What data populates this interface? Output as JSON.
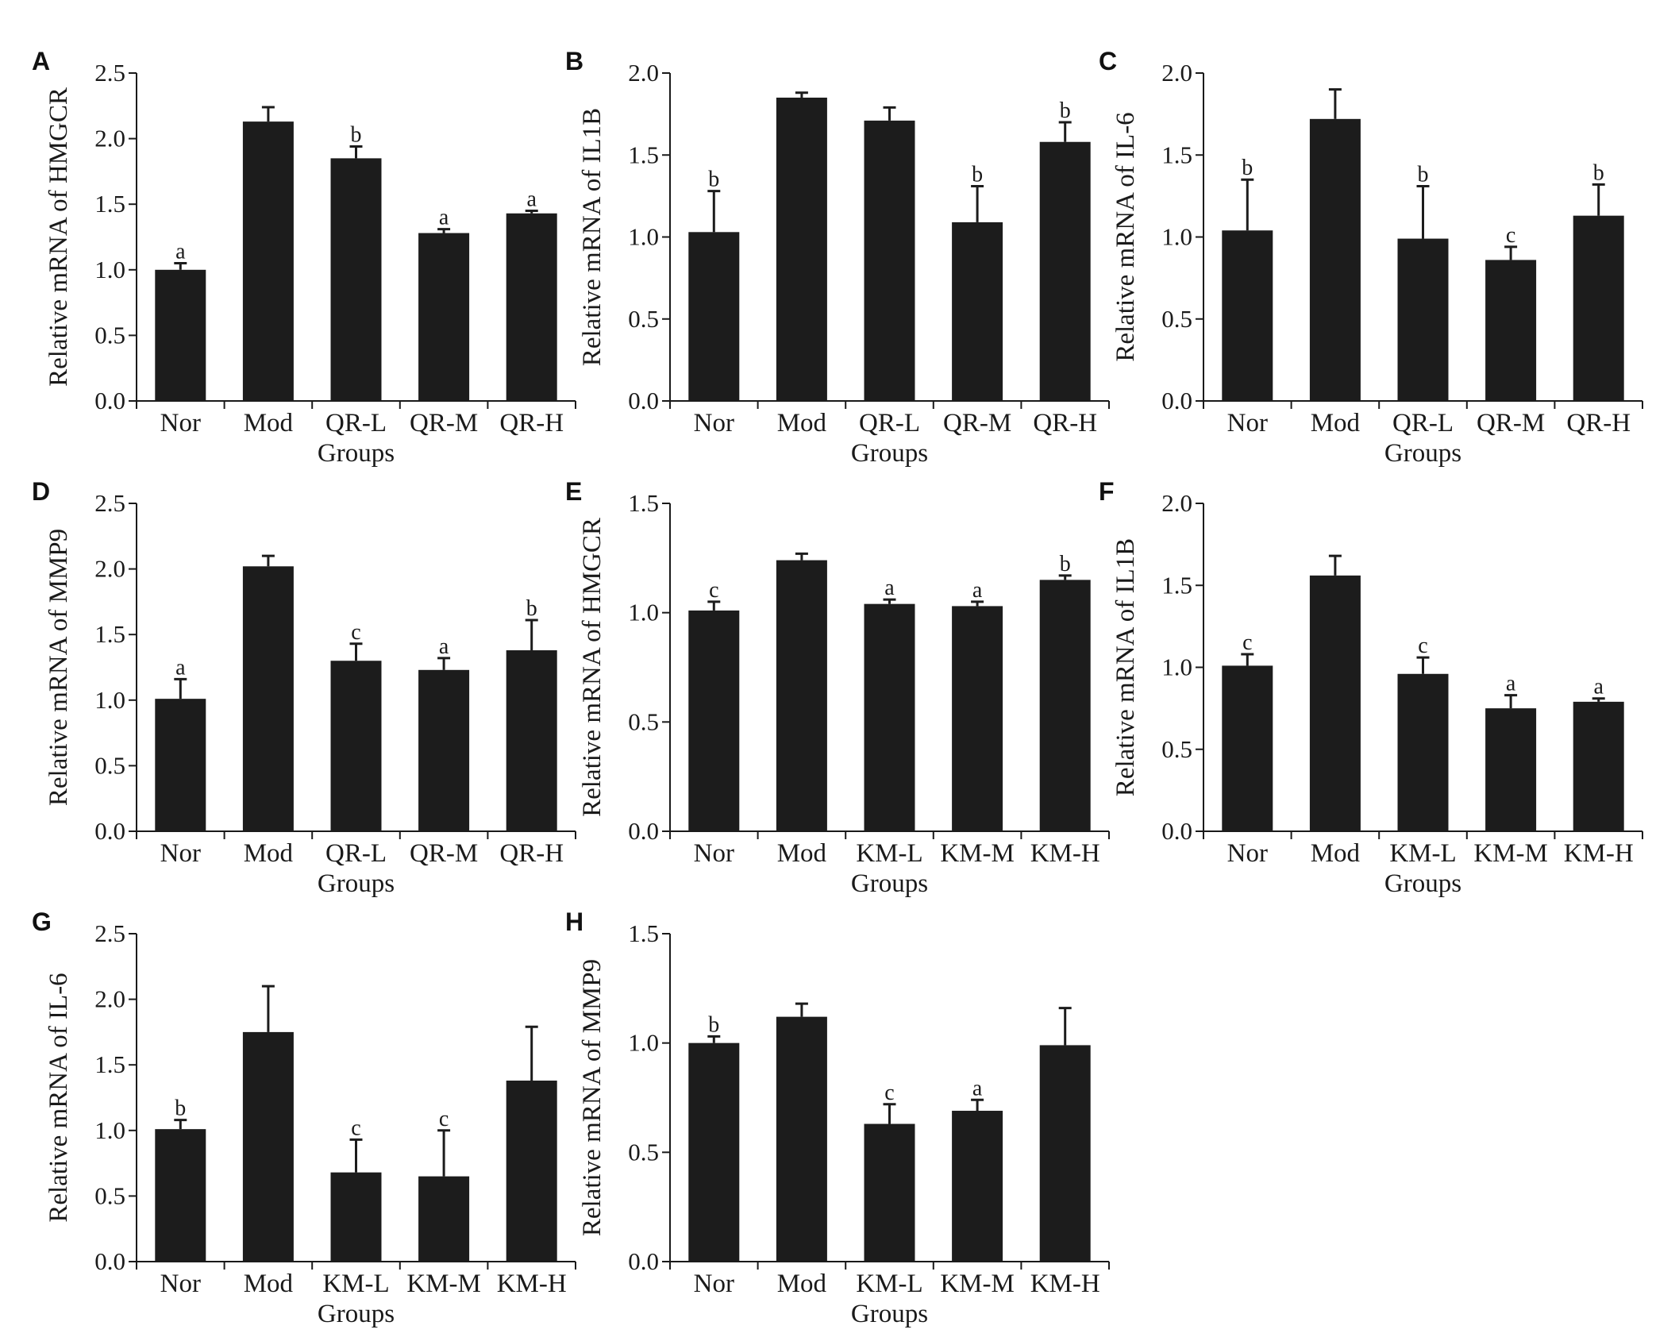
{
  "figure": {
    "background": "#ffffff",
    "bar_color": "#1c1c1c"
  },
  "chart_data": [
    {
      "panel": "A",
      "type": "bar",
      "title": "",
      "xlabel": "Groups",
      "ylabel": "Relative mRNA of HMGCR",
      "categories": [
        "Nor",
        "Mod",
        "QR-L",
        "QR-M",
        "QR-H"
      ],
      "values": [
        1.0,
        2.13,
        1.85,
        1.28,
        1.43
      ],
      "errors": [
        0.05,
        0.11,
        0.09,
        0.03,
        0.02
      ],
      "significance": [
        "a",
        "",
        "b",
        "a",
        "a"
      ],
      "ylim": [
        0,
        2.5
      ],
      "yticks": [
        "0.0",
        "0.5",
        "1.0",
        "1.5",
        "2.0",
        "2.5"
      ],
      "grid": false
    },
    {
      "panel": "B",
      "type": "bar",
      "title": "",
      "xlabel": "Groups",
      "ylabel": "Relative mRNA of IL1B",
      "categories": [
        "Nor",
        "Mod",
        "QR-L",
        "QR-M",
        "QR-H"
      ],
      "values": [
        1.03,
        1.85,
        1.71,
        1.09,
        1.58
      ],
      "errors": [
        0.25,
        0.03,
        0.08,
        0.22,
        0.12
      ],
      "significance": [
        "b",
        "",
        "",
        "b",
        "b"
      ],
      "ylim": [
        0,
        2.0
      ],
      "yticks": [
        "0.0",
        "0.5",
        "1.0",
        "1.5",
        "2.0"
      ],
      "grid": false
    },
    {
      "panel": "C",
      "type": "bar",
      "title": "",
      "xlabel": "Groups",
      "ylabel": "Relative mRNA of IL-6",
      "categories": [
        "Nor",
        "Mod",
        "QR-L",
        "QR-M",
        "QR-H"
      ],
      "values": [
        1.04,
        1.72,
        0.99,
        0.86,
        1.13
      ],
      "errors": [
        0.31,
        0.18,
        0.32,
        0.08,
        0.19
      ],
      "significance": [
        "b",
        "",
        "b",
        "c",
        "b"
      ],
      "ylim": [
        0,
        2.0
      ],
      "yticks": [
        "0.0",
        "0.5",
        "1.0",
        "1.5",
        "2.0"
      ],
      "grid": false
    },
    {
      "panel": "D",
      "type": "bar",
      "title": "",
      "xlabel": "Groups",
      "ylabel": "Relative mRNA of MMP9",
      "categories": [
        "Nor",
        "Mod",
        "QR-L",
        "QR-M",
        "QR-H"
      ],
      "values": [
        1.01,
        2.02,
        1.3,
        1.23,
        1.38
      ],
      "errors": [
        0.15,
        0.08,
        0.13,
        0.09,
        0.23
      ],
      "significance": [
        "a",
        "",
        "c",
        "a",
        "b"
      ],
      "ylim": [
        0,
        2.5
      ],
      "yticks": [
        "0.0",
        "0.5",
        "1.0",
        "1.5",
        "2.0",
        "2.5"
      ],
      "grid": false
    },
    {
      "panel": "E",
      "type": "bar",
      "title": "",
      "xlabel": "Groups",
      "ylabel": "Relative mRNA of HMGCR",
      "categories": [
        "Nor",
        "Mod",
        "KM-L",
        "KM-M",
        "KM-H"
      ],
      "values": [
        1.01,
        1.24,
        1.04,
        1.03,
        1.15
      ],
      "errors": [
        0.04,
        0.03,
        0.02,
        0.02,
        0.02
      ],
      "significance": [
        "c",
        "",
        "a",
        "a",
        "b"
      ],
      "ylim": [
        0,
        1.5
      ],
      "yticks": [
        "0.0",
        "0.5",
        "1.0",
        "1.5"
      ],
      "grid": false
    },
    {
      "panel": "F",
      "type": "bar",
      "title": "",
      "xlabel": "Groups",
      "ylabel": "Relative mRNA of IL1B",
      "categories": [
        "Nor",
        "Mod",
        "KM-L",
        "KM-M",
        "KM-H"
      ],
      "values": [
        1.01,
        1.56,
        0.96,
        0.75,
        0.79
      ],
      "errors": [
        0.07,
        0.12,
        0.1,
        0.08,
        0.02
      ],
      "significance": [
        "c",
        "",
        "c",
        "a",
        "a"
      ],
      "ylim": [
        0,
        2.0
      ],
      "yticks": [
        "0.0",
        "0.5",
        "1.0",
        "1.5",
        "2.0"
      ],
      "grid": false
    },
    {
      "panel": "G",
      "type": "bar",
      "title": "",
      "xlabel": "Groups",
      "ylabel": "Relative mRNA of IL-6",
      "categories": [
        "Nor",
        "Mod",
        "KM-L",
        "KM-M",
        "KM-H"
      ],
      "values": [
        1.01,
        1.75,
        0.68,
        0.65,
        1.38
      ],
      "errors": [
        0.07,
        0.35,
        0.25,
        0.35,
        0.41
      ],
      "significance": [
        "b",
        "",
        "c",
        "c",
        ""
      ],
      "ylim": [
        0,
        2.5
      ],
      "yticks": [
        "0.0",
        "0.5",
        "1.0",
        "1.5",
        "2.0",
        "2.5"
      ],
      "grid": false
    },
    {
      "panel": "H",
      "type": "bar",
      "title": "",
      "xlabel": "Groups",
      "ylabel": "Relative mRNA of MMP9",
      "categories": [
        "Nor",
        "Mod",
        "KM-L",
        "KM-M",
        "KM-H"
      ],
      "values": [
        1.0,
        1.12,
        0.63,
        0.69,
        0.99
      ],
      "errors": [
        0.03,
        0.06,
        0.09,
        0.05,
        0.17
      ],
      "significance": [
        "b",
        "",
        "c",
        "a",
        ""
      ],
      "ylim": [
        0,
        1.5
      ],
      "yticks": [
        "0.0",
        "0.5",
        "1.0",
        "1.5"
      ],
      "grid": false
    }
  ]
}
